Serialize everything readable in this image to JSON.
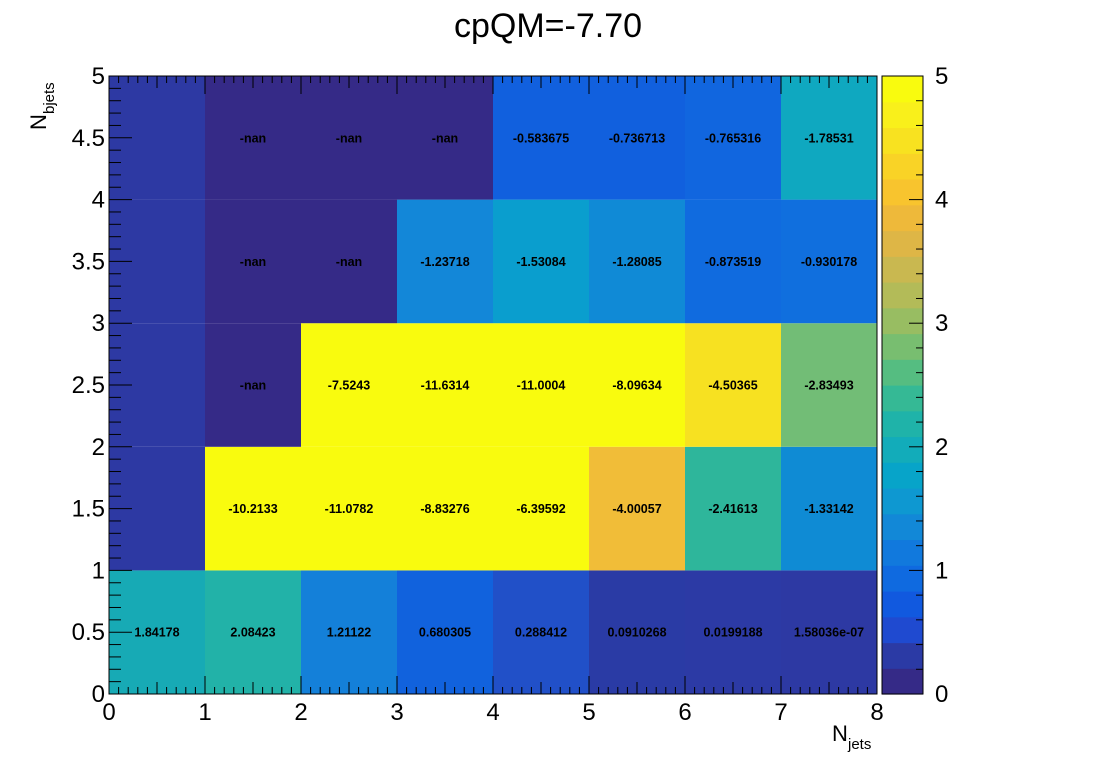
{
  "chart_data": {
    "type": "heatmap",
    "title": "cpQM=-7.70",
    "xlabel": {
      "main": "N",
      "sub": "jets"
    },
    "ylabel": {
      "main": "N",
      "sub": "bjets"
    },
    "xlim": [
      0,
      8
    ],
    "ylim": [
      0,
      5
    ],
    "x_ticks": [
      "0",
      "1",
      "2",
      "3",
      "4",
      "5",
      "6",
      "7",
      "8"
    ],
    "y_ticks": [
      "0",
      "0.5",
      "1",
      "1.5",
      "2",
      "2.5",
      "3",
      "3.5",
      "4",
      "4.5",
      "5"
    ],
    "x_bin_edges": [
      0,
      1,
      2,
      3,
      4,
      5,
      6,
      7,
      8
    ],
    "y_bin_edges": [
      0,
      1,
      2,
      3,
      4,
      5
    ],
    "zlim": [
      0,
      5
    ],
    "z_ticks": [
      "0",
      "1",
      "2",
      "3",
      "4",
      "5"
    ],
    "colorbar_levels": [
      "#352a87",
      "#2b3aa5",
      "#1f4ad0",
      "#1159df",
      "#0f6ae0",
      "#1179dd",
      "#1288d7",
      "#0e98d1",
      "#07a4c9",
      "#12acba",
      "#1fb3a9",
      "#35b995",
      "#55bd81",
      "#78be70",
      "#98bd62",
      "#b3bb58",
      "#c9b850",
      "#deb646",
      "#eeb93a",
      "#f8c42e",
      "#f9d326",
      "#f8e220",
      "#f9f01b",
      "#f9fb0e"
    ],
    "rows": [
      {
        "y_bin": "0-1",
        "cells": [
          {
            "label": "1.84178",
            "color": "#17aab5"
          },
          {
            "label": "2.08423",
            "color": "#22b2a8"
          },
          {
            "label": "1.21122",
            "color": "#1480d9"
          },
          {
            "label": "0.680305",
            "color": "#1162dd"
          },
          {
            "label": "0.288412",
            "color": "#2150c8"
          },
          {
            "label": "0.0910268",
            "color": "#2a3ba5"
          },
          {
            "label": "0.0199188",
            "color": "#2c3aa5"
          },
          {
            "label": "1.58036e-07",
            "color": "#2d39a3"
          }
        ]
      },
      {
        "y_bin": "1-2",
        "cells": [
          {
            "label": "",
            "color": "#2d39a3"
          },
          {
            "label": "-10.2133",
            "color": "#f9fb0e"
          },
          {
            "label": "-11.0782",
            "color": "#f9fb0e"
          },
          {
            "label": "-8.83276",
            "color": "#f9fb0e"
          },
          {
            "label": "-6.39592",
            "color": "#f9fb0e"
          },
          {
            "label": "-4.00057",
            "color": "#f1bd38"
          },
          {
            "label": "-2.41613",
            "color": "#2eb69b"
          },
          {
            "label": "-1.33142",
            "color": "#0f8bd4"
          }
        ]
      },
      {
        "y_bin": "2-3",
        "cells": [
          {
            "label": "",
            "color": "#2d39a3"
          },
          {
            "label": "-nan",
            "color": "#352a87"
          },
          {
            "label": "-7.5243",
            "color": "#f9fb0e"
          },
          {
            "label": "-11.6314",
            "color": "#f9fb0e"
          },
          {
            "label": "-11.0004",
            "color": "#f9fb0e"
          },
          {
            "label": "-8.09634",
            "color": "#f9fb0e"
          },
          {
            "label": "-4.50365",
            "color": "#f7e121"
          },
          {
            "label": "-2.83493",
            "color": "#72bd76"
          }
        ]
      },
      {
        "y_bin": "3-4",
        "cells": [
          {
            "label": "",
            "color": "#2d39a3"
          },
          {
            "label": "-nan",
            "color": "#352a87"
          },
          {
            "label": "-nan",
            "color": "#352a87"
          },
          {
            "label": "-1.23718",
            "color": "#1387d8"
          },
          {
            "label": "-1.53084",
            "color": "#0a9ece"
          },
          {
            "label": "-1.28085",
            "color": "#108ad6"
          },
          {
            "label": "-0.873519",
            "color": "#106bdf"
          },
          {
            "label": "-0.930178",
            "color": "#106fde"
          }
        ]
      },
      {
        "y_bin": "4-5",
        "cells": [
          {
            "label": "",
            "color": "#2d39a3"
          },
          {
            "label": "-nan",
            "color": "#352a87"
          },
          {
            "label": "-nan",
            "color": "#352a87"
          },
          {
            "label": "-nan",
            "color": "#352a87"
          },
          {
            "label": "-0.583675",
            "color": "#1160de"
          },
          {
            "label": "-0.736713",
            "color": "#1160de"
          },
          {
            "label": "-0.765316",
            "color": "#1166df"
          },
          {
            "label": "-1.78531",
            "color": "#0fa8c0"
          }
        ]
      }
    ],
    "grid": false,
    "legend": "colorbar-right"
  }
}
